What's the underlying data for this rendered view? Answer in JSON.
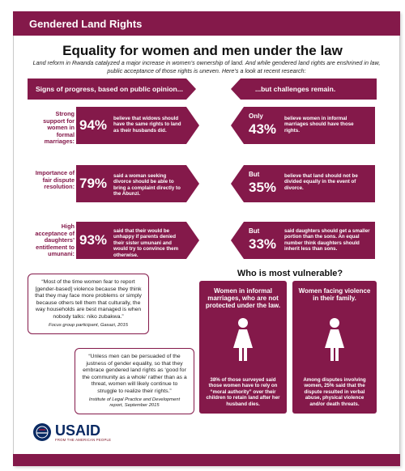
{
  "header": {
    "title": "Gendered Land Rights"
  },
  "main_title": "Equality for women and men under the law",
  "intro": "Land reform in Rwanda catalyzed a major increase in women’s ownership of land. And while gendered land rights are enshrined in law, public acceptance of those rights is uneven. Here’s a look at recent research:",
  "banners": {
    "left": "Signs of progress, based on public opinion...",
    "right": "...but challenges remain."
  },
  "rows": [
    {
      "label": "Strong support for women in formal marriages:",
      "left_pct": "94%",
      "left_text": "believe that widows should have the same rights to land as their husbands did.",
      "right_prefix": "Only",
      "right_pct": "43%",
      "right_text": "believe women in informal marriages should have those rights."
    },
    {
      "label": "Importance of fair dispute resolution:",
      "left_pct": "79%",
      "left_text": "said a woman seeking divorce should be able to bring a complaint directly to the Abunzi.",
      "right_prefix": "But",
      "right_pct": "35%",
      "right_text": "believe that land should not be divided equally in the event of divorce."
    },
    {
      "label": "High acceptance of daughters’ entitlement to umunani:",
      "left_pct": "93%",
      "left_text": "said that their would be unhappy if parents denied their sister umunani and would try to convince them otherwise.",
      "right_prefix": "But",
      "right_pct": "33%",
      "right_text": "said daughters should get a smaller portion than the sons. An equal number think daughters should inherit less than sons."
    }
  ],
  "vulnerable": {
    "title": "Who is most vulnerable?",
    "cards": [
      {
        "heading": "Women in informal marriages, who are not protected under the law.",
        "icon": "woman-icon",
        "body": "38% of those surveyed said those women have to rely on “moral authority” over their children to retain land after her husband dies."
      },
      {
        "heading": "Women facing violence in their family.",
        "icon": "woman-icon",
        "body": "Among disputes involving women, 25% said that the dispute resulted in verbal abuse, physical violence and/or death threats."
      }
    ]
  },
  "quotes": [
    {
      "text": "“Most of the time women fear to report [gender-based] violence because they think that they may face more problems or simply because others tell them that culturally, the way households are best managed is when nobody talks: niko zubakwa.”",
      "source": "Focus group participant, Gasazi, 2015"
    },
    {
      "text": "“Unless men can be persuaded of the justness of gender equality, so that they embrace gendered land rights as ‘good for the community as a whole’ rather than as a threat, women will likely continue to struggle to realize their rights.”",
      "source": "Institute of Legal Practice and Development report, September 2015"
    }
  ],
  "logo": {
    "word": "USAID",
    "tagline": "FROM THE AMERICAN PEOPLE"
  },
  "colors": {
    "accent": "#84194a",
    "logo_blue": "#0a2a63"
  }
}
